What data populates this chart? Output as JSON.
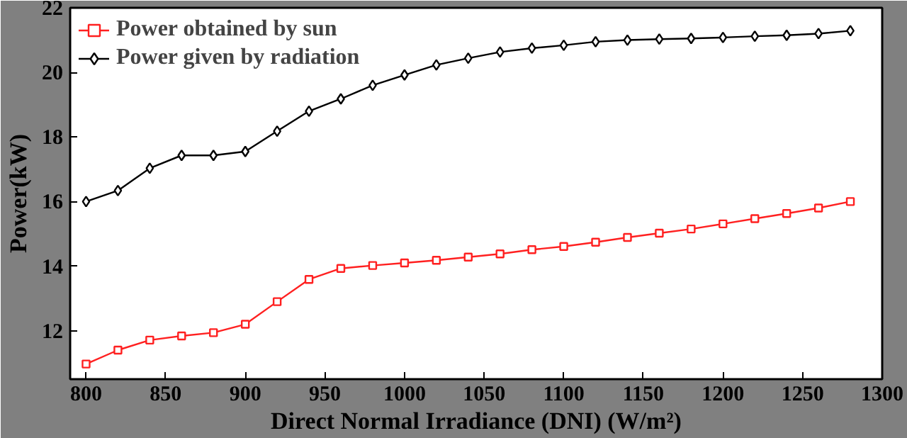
{
  "chart_data": {
    "type": "line",
    "xlabel": "Direct Normal Irradiance (DNI) (W/m²)",
    "ylabel": "Power(kW)",
    "x": [
      800,
      820,
      840,
      860,
      880,
      900,
      920,
      940,
      960,
      980,
      1000,
      1020,
      1040,
      1060,
      1080,
      1100,
      1120,
      1140,
      1160,
      1180,
      1200,
      1220,
      1240,
      1260,
      1280
    ],
    "series": [
      {
        "name": "Power obtained by sun",
        "color": "#ff2020",
        "marker": "square",
        "values": [
          10.97,
          11.4,
          11.71,
          11.84,
          11.94,
          12.2,
          12.9,
          13.59,
          13.93,
          14.02,
          14.1,
          14.18,
          14.28,
          14.38,
          14.51,
          14.61,
          14.74,
          14.89,
          15.02,
          15.15,
          15.31,
          15.47,
          15.63,
          15.8,
          16.0
        ]
      },
      {
        "name": "Power given by radiation",
        "color": "#000000",
        "marker": "diamond",
        "values": [
          16.0,
          16.34,
          17.03,
          17.43,
          17.43,
          17.55,
          18.18,
          18.8,
          19.18,
          19.6,
          19.92,
          20.23,
          20.44,
          20.63,
          20.75,
          20.84,
          20.95,
          21.0,
          21.03,
          21.05,
          21.08,
          21.12,
          21.15,
          21.2,
          21.29
        ]
      }
    ],
    "xlim": [
      790,
      1300
    ],
    "xticks": [
      800,
      850,
      900,
      950,
      1000,
      1050,
      1100,
      1150,
      1200,
      1250,
      1300
    ],
    "ylim": [
      10.5,
      22
    ],
    "yticks": [
      12,
      14,
      16,
      18,
      20,
      22
    ],
    "grid": false,
    "legend": "top left",
    "line_style": "solid"
  }
}
